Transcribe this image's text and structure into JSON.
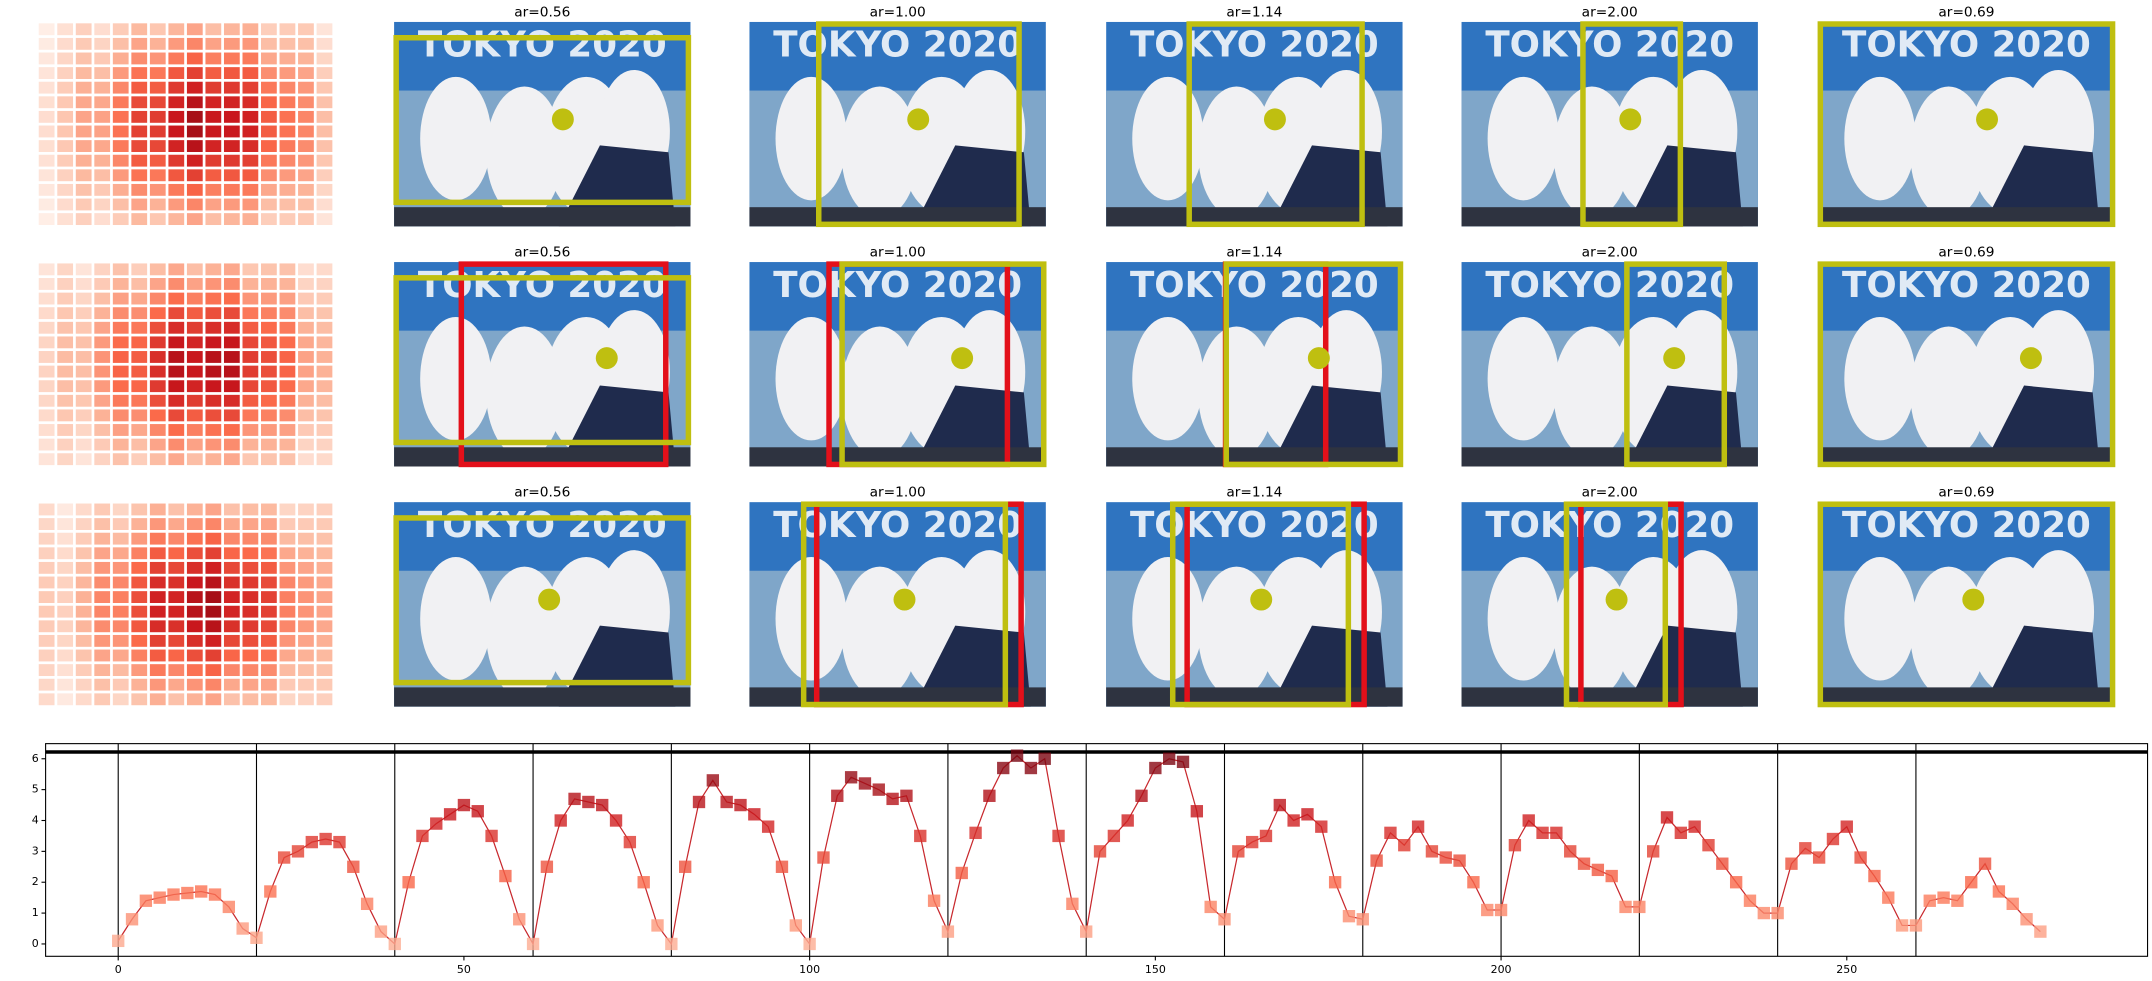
{
  "panel_titles": [
    [
      "ar=0.56",
      "ar=1.00",
      "ar=1.14",
      "ar=2.00",
      "ar=0.69"
    ],
    [
      "ar=0.56",
      "ar=1.00",
      "ar=1.14",
      "ar=2.00",
      "ar=0.69"
    ],
    [
      "ar=0.56",
      "ar=1.00",
      "ar=1.14",
      "ar=2.00",
      "ar=0.69"
    ]
  ],
  "photo_text": "TOKYO 2020",
  "chart_data": {
    "type": "line",
    "color": "#c8282d",
    "x": [
      0,
      2,
      4,
      6,
      8,
      10,
      12,
      14,
      16,
      18,
      20,
      22,
      24,
      26,
      28,
      30,
      32,
      34,
      36,
      38,
      40,
      42,
      44,
      46,
      48,
      50,
      52,
      54,
      56,
      58,
      60,
      62,
      64,
      66,
      68,
      70,
      72,
      74,
      76,
      78,
      80,
      82,
      84,
      86,
      88,
      90,
      92,
      94,
      96,
      98,
      100,
      102,
      104,
      106,
      108,
      110,
      112,
      114,
      116,
      118,
      120,
      122,
      124,
      126,
      128,
      130,
      132,
      134,
      136,
      138,
      140,
      142,
      144,
      146,
      148,
      150,
      152,
      154,
      156,
      158,
      160,
      162,
      164,
      166,
      168,
      170,
      172,
      174,
      176,
      178,
      180,
      182,
      184,
      186,
      188,
      190,
      192,
      194,
      196,
      198,
      200,
      202,
      204,
      206,
      208,
      210,
      212,
      214,
      216,
      218,
      220,
      222,
      224,
      226,
      228,
      230,
      232,
      234,
      236,
      238,
      240,
      242,
      244,
      246,
      248,
      250,
      252,
      254,
      256,
      258,
      260,
      262,
      264,
      266,
      268,
      270,
      272,
      274,
      276,
      278
    ],
    "values": [
      0.1,
      0.8,
      1.4,
      1.5,
      1.6,
      1.65,
      1.7,
      1.6,
      1.2,
      0.5,
      0.2,
      1.7,
      2.8,
      3.0,
      3.3,
      3.4,
      3.3,
      2.5,
      1.3,
      0.4,
      0.0,
      2.0,
      3.5,
      3.9,
      4.2,
      4.5,
      4.3,
      3.5,
      2.2,
      0.8,
      0.0,
      2.5,
      4.0,
      4.7,
      4.6,
      4.5,
      4.0,
      3.3,
      2.0,
      0.6,
      0.0,
      2.5,
      4.6,
      5.3,
      4.6,
      4.5,
      4.2,
      3.8,
      2.5,
      0.6,
      0.0,
      2.8,
      4.8,
      5.4,
      5.2,
      5.0,
      4.7,
      4.8,
      3.5,
      1.4,
      0.4,
      2.3,
      3.6,
      4.8,
      5.7,
      6.1,
      5.7,
      6.0,
      3.5,
      1.3,
      0.4,
      3.0,
      3.5,
      4.0,
      4.8,
      5.7,
      6.0,
      5.9,
      4.3,
      1.2,
      0.8,
      3.0,
      3.3,
      3.5,
      4.5,
      4.0,
      4.2,
      3.8,
      2.0,
      0.9,
      0.8,
      2.7,
      3.6,
      3.2,
      3.8,
      3.0,
      2.8,
      2.7,
      2.0,
      1.1,
      1.1,
      3.2,
      4.0,
      3.6,
      3.6,
      3.0,
      2.6,
      2.4,
      2.2,
      1.2,
      1.2,
      3.0,
      4.1,
      3.6,
      3.8,
      3.2,
      2.6,
      2.0,
      1.4,
      1.0,
      1.0,
      2.6,
      3.1,
      2.8,
      3.4,
      3.8,
      2.8,
      2.2,
      1.5,
      0.6,
      0.6,
      1.4,
      1.5,
      1.4,
      2.0,
      2.6,
      1.7,
      1.3,
      0.8,
      0.4
    ],
    "xlim": [
      -10.5,
      293.5
    ],
    "ylim": [
      -0.4,
      6.49
    ],
    "xticks": [
      0,
      50,
      100,
      150,
      200,
      250
    ],
    "yticks": [
      0,
      1,
      2,
      3,
      4,
      5,
      6
    ],
    "vlines": [
      0,
      20,
      40,
      60,
      80,
      100,
      120,
      140,
      160,
      180,
      200,
      220,
      240,
      260
    ],
    "hline": 6.22
  }
}
